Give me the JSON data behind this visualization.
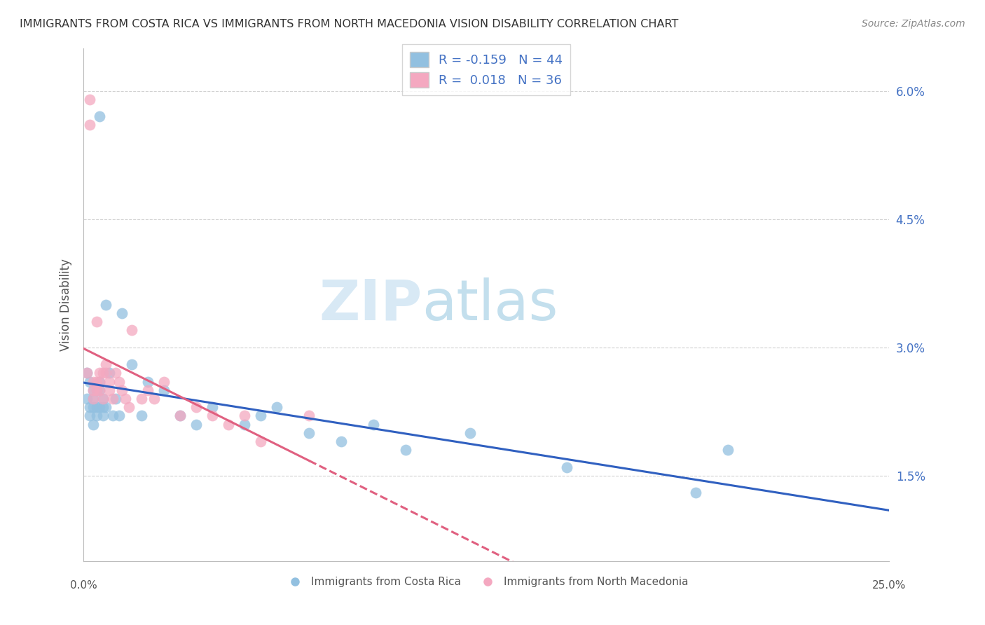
{
  "title": "IMMIGRANTS FROM COSTA RICA VS IMMIGRANTS FROM NORTH MACEDONIA VISION DISABILITY CORRELATION CHART",
  "source": "Source: ZipAtlas.com",
  "ylabel": "Vision Disability",
  "ytick_vals": [
    0.015,
    0.03,
    0.045,
    0.06
  ],
  "ytick_labels": [
    "1.5%",
    "3.0%",
    "4.5%",
    "6.0%"
  ],
  "xlim": [
    0.0,
    0.25
  ],
  "ylim": [
    0.005,
    0.065
  ],
  "blue_color": "#92c0e0",
  "pink_color": "#f4a8c0",
  "line_blue": "#3060c0",
  "line_pink": "#e06080",
  "watermark_color": "#c8dff0",
  "cr_x": [
    0.001,
    0.001,
    0.002,
    0.002,
    0.002,
    0.003,
    0.003,
    0.003,
    0.003,
    0.004,
    0.004,
    0.004,
    0.005,
    0.005,
    0.005,
    0.005,
    0.006,
    0.006,
    0.006,
    0.007,
    0.007,
    0.008,
    0.009,
    0.01,
    0.011,
    0.012,
    0.015,
    0.018,
    0.02,
    0.025,
    0.03,
    0.035,
    0.04,
    0.05,
    0.055,
    0.06,
    0.07,
    0.08,
    0.09,
    0.1,
    0.12,
    0.15,
    0.19,
    0.2
  ],
  "cr_y": [
    0.027,
    0.024,
    0.026,
    0.023,
    0.022,
    0.025,
    0.024,
    0.023,
    0.021,
    0.025,
    0.023,
    0.022,
    0.057,
    0.026,
    0.025,
    0.023,
    0.024,
    0.023,
    0.022,
    0.035,
    0.023,
    0.027,
    0.022,
    0.024,
    0.022,
    0.034,
    0.028,
    0.022,
    0.026,
    0.025,
    0.022,
    0.021,
    0.023,
    0.021,
    0.022,
    0.023,
    0.02,
    0.019,
    0.021,
    0.018,
    0.02,
    0.016,
    0.013,
    0.018
  ],
  "nm_x": [
    0.001,
    0.002,
    0.002,
    0.003,
    0.003,
    0.003,
    0.004,
    0.004,
    0.004,
    0.005,
    0.005,
    0.005,
    0.006,
    0.006,
    0.007,
    0.007,
    0.008,
    0.008,
    0.009,
    0.01,
    0.011,
    0.012,
    0.013,
    0.014,
    0.015,
    0.018,
    0.02,
    0.022,
    0.025,
    0.03,
    0.035,
    0.04,
    0.045,
    0.05,
    0.055,
    0.07
  ],
  "nm_y": [
    0.027,
    0.059,
    0.056,
    0.026,
    0.025,
    0.024,
    0.026,
    0.025,
    0.033,
    0.027,
    0.026,
    0.025,
    0.027,
    0.024,
    0.028,
    0.027,
    0.026,
    0.025,
    0.024,
    0.027,
    0.026,
    0.025,
    0.024,
    0.023,
    0.032,
    0.024,
    0.025,
    0.024,
    0.026,
    0.022,
    0.023,
    0.022,
    0.021,
    0.022,
    0.019,
    0.022
  ],
  "legend1_label": "R = -0.159   N = 44",
  "legend2_label": "R =  0.018   N = 36",
  "bottom_label1": "Immigrants from Costa Rica",
  "bottom_label2": "Immigrants from North Macedonia"
}
